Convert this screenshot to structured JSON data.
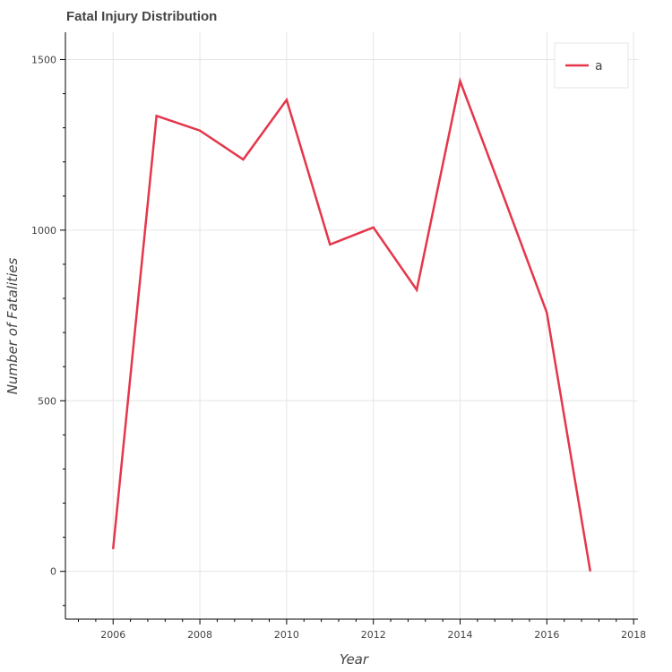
{
  "chart_data": {
    "type": "line",
    "title": "Fatal Injury Distribution",
    "xlabel": "Year",
    "ylabel": "Number of Fatalities",
    "xlim": [
      2004.9,
      2018.1
    ],
    "ylim": [
      -140,
      1580
    ],
    "x_ticks": [
      2006,
      2008,
      2010,
      2012,
      2014,
      2016,
      2018
    ],
    "y_ticks": [
      0,
      500,
      1000,
      1500
    ],
    "grid": true,
    "legend_position": "top-right",
    "series": [
      {
        "name": "a",
        "color": "#e5364a",
        "x": [
          2006,
          2007,
          2008,
          2009,
          2010,
          2011,
          2012,
          2013,
          2014,
          2015,
          2016,
          2017
        ],
        "y": [
          65,
          1335,
          1292,
          1207,
          1382,
          958,
          1008,
          825,
          1437,
          1100,
          758,
          0
        ]
      }
    ]
  }
}
